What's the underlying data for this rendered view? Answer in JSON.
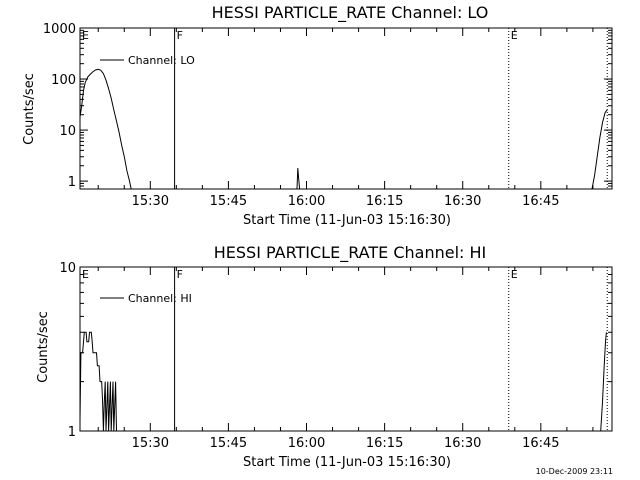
{
  "footer": {
    "timestamp": "10-Dec-2009 23:11"
  },
  "chart_data": [
    {
      "type": "line",
      "title": "HESSI PARTICLE_RATE Channel: LO",
      "xlabel": "Start Time (11-Jun-03 15:16:30)",
      "ylabel": "Counts/sec",
      "xlim": [
        "15:16:30",
        "16:58:40"
      ],
      "x_ticks": [
        "15:30",
        "15:45",
        "16:00",
        "16:15",
        "16:30",
        "16:45"
      ],
      "y_scale": "log",
      "ylim": [
        0.7,
        1000
      ],
      "y_ticks": [
        "1",
        "10",
        "100",
        "1000"
      ],
      "grid": false,
      "legend_position": "top-left",
      "series": [
        {
          "name": "Channel: LO",
          "color": "#000000",
          "points": [
            [
              "15:16:30",
              18
            ],
            [
              "15:16:50",
              30
            ],
            [
              "15:17:10",
              60
            ],
            [
              "15:17:30",
              85
            ],
            [
              "15:18:00",
              110
            ],
            [
              "15:18:30",
              125
            ],
            [
              "15:19:00",
              140
            ],
            [
              "15:19:30",
              150
            ],
            [
              "15:20:00",
              155
            ],
            [
              "15:20:30",
              148
            ],
            [
              "15:21:00",
              128
            ],
            [
              "15:21:30",
              95
            ],
            [
              "15:22:00",
              65
            ],
            [
              "15:22:30",
              42
            ],
            [
              "15:23:00",
              25
            ],
            [
              "15:23:30",
              15
            ],
            [
              "15:24:00",
              9
            ],
            [
              "15:24:30",
              5
            ],
            [
              "15:25:00",
              3
            ],
            [
              "15:25:30",
              1.6
            ],
            [
              "15:26:00",
              1.0
            ],
            [
              "15:26:20",
              0.7
            ],
            null,
            [
              "15:58:10",
              0.7
            ],
            [
              "15:58:20",
              1.8
            ],
            [
              "15:58:30",
              1.1
            ],
            [
              "15:58:40",
              0.7
            ],
            null,
            [
              "16:54:50",
              0.7
            ],
            [
              "16:55:20",
              1.3
            ],
            [
              "16:55:50",
              3.0
            ],
            [
              "16:56:20",
              7
            ],
            [
              "16:56:50",
              14
            ],
            [
              "16:57:20",
              22
            ],
            [
              "16:57:45",
              25
            ]
          ]
        }
      ],
      "annotations": [
        {
          "label": "E",
          "time": "15:16:30",
          "line": "none"
        },
        {
          "label": "F",
          "time": "15:34:40",
          "line": "solid"
        },
        {
          "label": "E",
          "time": "16:38:50",
          "line": "dotted"
        },
        {
          "label": "",
          "time": "16:57:45",
          "line": "dotted"
        }
      ]
    },
    {
      "type": "line",
      "title": "HESSI PARTICLE_RATE Channel: HI",
      "xlabel": "Start Time (11-Jun-03 15:16:30)",
      "ylabel": "Counts/sec",
      "xlim": [
        "15:16:30",
        "16:58:40"
      ],
      "x_ticks": [
        "15:30",
        "15:45",
        "16:00",
        "16:15",
        "16:30",
        "16:45"
      ],
      "y_scale": "log",
      "ylim": [
        1,
        10
      ],
      "y_ticks": [
        "1",
        "10"
      ],
      "grid": false,
      "legend_position": "top-left",
      "series": [
        {
          "name": "Channel: HI",
          "color": "#000000",
          "points": [
            [
              "15:16:30",
              1.15
            ],
            [
              "15:16:40",
              3.0
            ],
            [
              "15:17:00",
              3.0
            ],
            [
              "15:17:10",
              3.5
            ],
            [
              "15:17:20",
              4.0
            ],
            [
              "15:17:40",
              4.0
            ],
            [
              "15:17:50",
              3.5
            ],
            [
              "15:18:10",
              3.5
            ],
            [
              "15:18:20",
              4.0
            ],
            [
              "15:18:40",
              4.0
            ],
            [
              "15:18:50",
              3.5
            ],
            [
              "15:19:00",
              3.0
            ],
            [
              "15:19:40",
              3.0
            ],
            [
              "15:19:50",
              2.5
            ],
            [
              "15:20:10",
              2.5
            ],
            [
              "15:20:20",
              2.0
            ],
            [
              "15:20:40",
              2.0
            ],
            [
              "15:20:50",
              1.5
            ],
            [
              "15:21:00",
              1.0
            ],
            [
              "15:21:10",
              1.5
            ],
            [
              "15:21:20",
              2.0
            ],
            [
              "15:21:30",
              1.0
            ],
            [
              "15:21:50",
              2.0
            ],
            [
              "15:22:00",
              1.0
            ],
            [
              "15:22:20",
              2.0
            ],
            [
              "15:22:30",
              1.0
            ],
            [
              "15:22:50",
              2.0
            ],
            [
              "15:23:00",
              1.0
            ],
            [
              "15:23:20",
              2.0
            ],
            [
              "15:23:30",
              1.0
            ],
            null,
            [
              "16:56:30",
              1.0
            ],
            [
              "16:56:50",
              1.5
            ],
            [
              "16:57:10",
              2.5
            ],
            [
              "16:57:25",
              3.5
            ],
            [
              "16:57:35",
              4.0
            ]
          ]
        }
      ],
      "annotations": [
        {
          "label": "E",
          "time": "15:16:30",
          "line": "none"
        },
        {
          "label": "F",
          "time": "15:34:40",
          "line": "solid"
        },
        {
          "label": "E",
          "time": "16:38:50",
          "line": "dotted"
        },
        {
          "label": "",
          "time": "16:57:45",
          "line": "dotted"
        }
      ]
    }
  ]
}
